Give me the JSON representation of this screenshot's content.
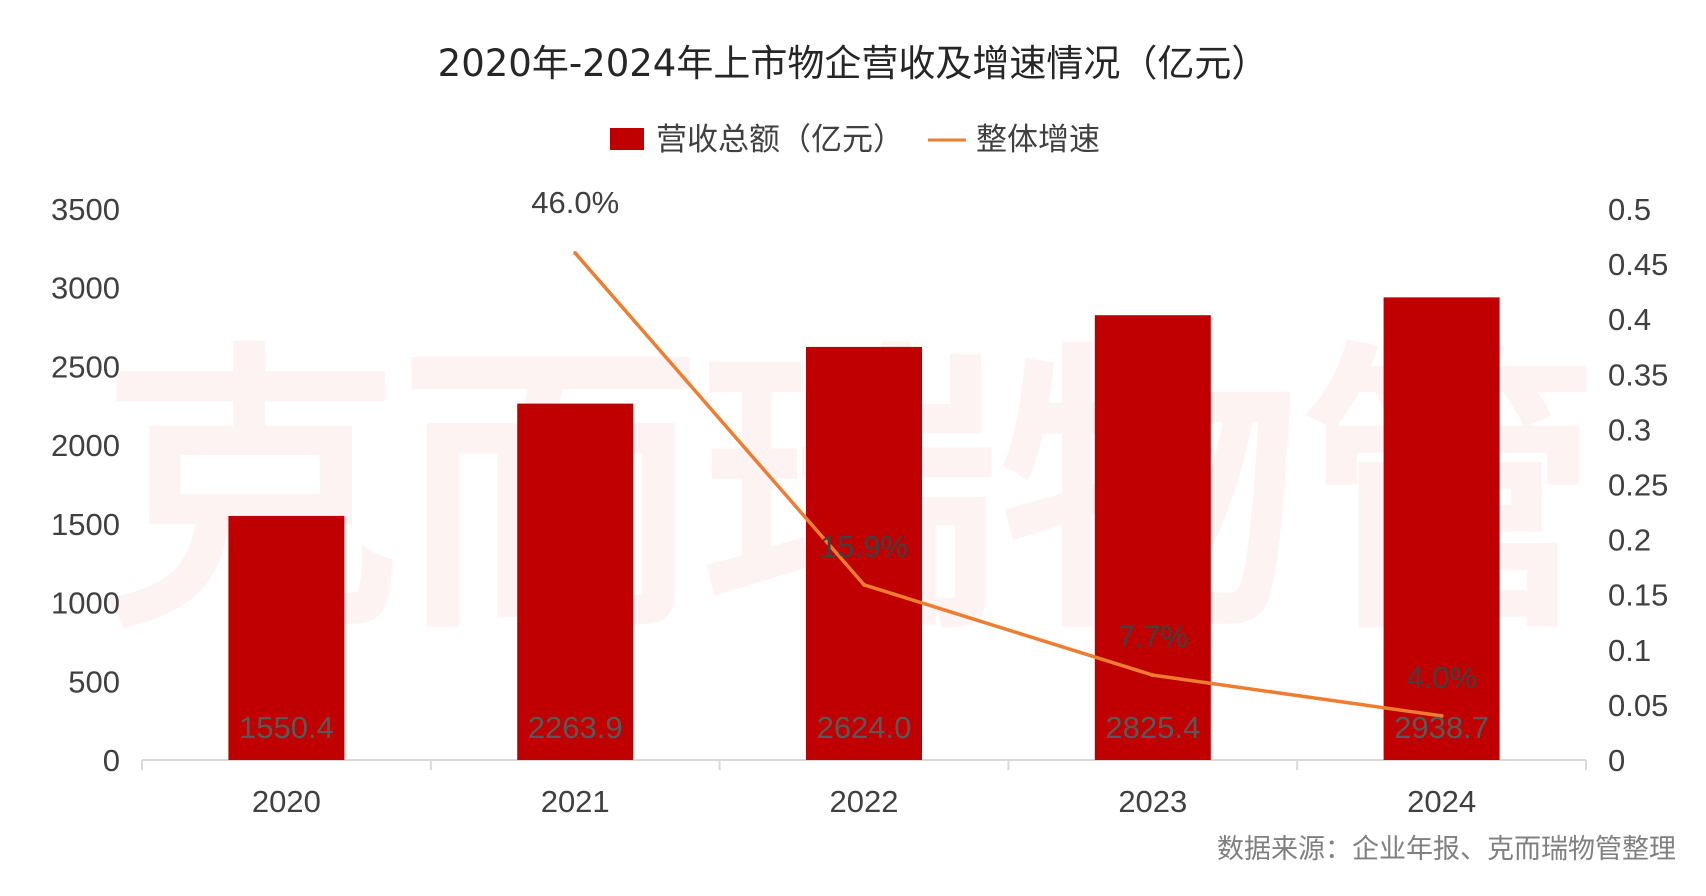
{
  "chart_data": {
    "type": "bar",
    "title": "2020年-2024年上市物企营收及增速情况（亿元）",
    "categories": [
      "2020",
      "2021",
      "2022",
      "2023",
      "2024"
    ],
    "series": [
      {
        "name": "营收总额（亿元）",
        "type": "bar",
        "axis": "left",
        "color": "#c00000",
        "values": [
          1550.4,
          2263.9,
          2624.0,
          2825.4,
          2938.7
        ],
        "labels": [
          "1550.4",
          "2263.9",
          "2624.0",
          "2825.4",
          "2938.7"
        ]
      },
      {
        "name": "整体增速",
        "type": "line",
        "axis": "right",
        "color": "#ed7d31",
        "values": [
          null,
          0.46,
          0.159,
          0.077,
          0.04
        ],
        "labels": [
          "",
          "46.0%",
          "15.9%",
          "7.7%",
          "4.0%"
        ]
      }
    ],
    "y_left": {
      "ylim": [
        0,
        3500
      ],
      "ticks": [
        "0",
        "500",
        "1000",
        "1500",
        "2000",
        "2500",
        "3000",
        "3500"
      ]
    },
    "y_right": {
      "ylim": [
        0,
        0.5
      ],
      "ticks": [
        "0",
        "0.05",
        "0.1",
        "0.15",
        "0.2",
        "0.25",
        "0.3",
        "0.35",
        "0.4",
        "0.45",
        "0.5"
      ]
    },
    "legend_position": "top",
    "grid": false,
    "watermark": "克而瑞物管",
    "source": "数据来源：企业年报、克而瑞物管整理"
  }
}
